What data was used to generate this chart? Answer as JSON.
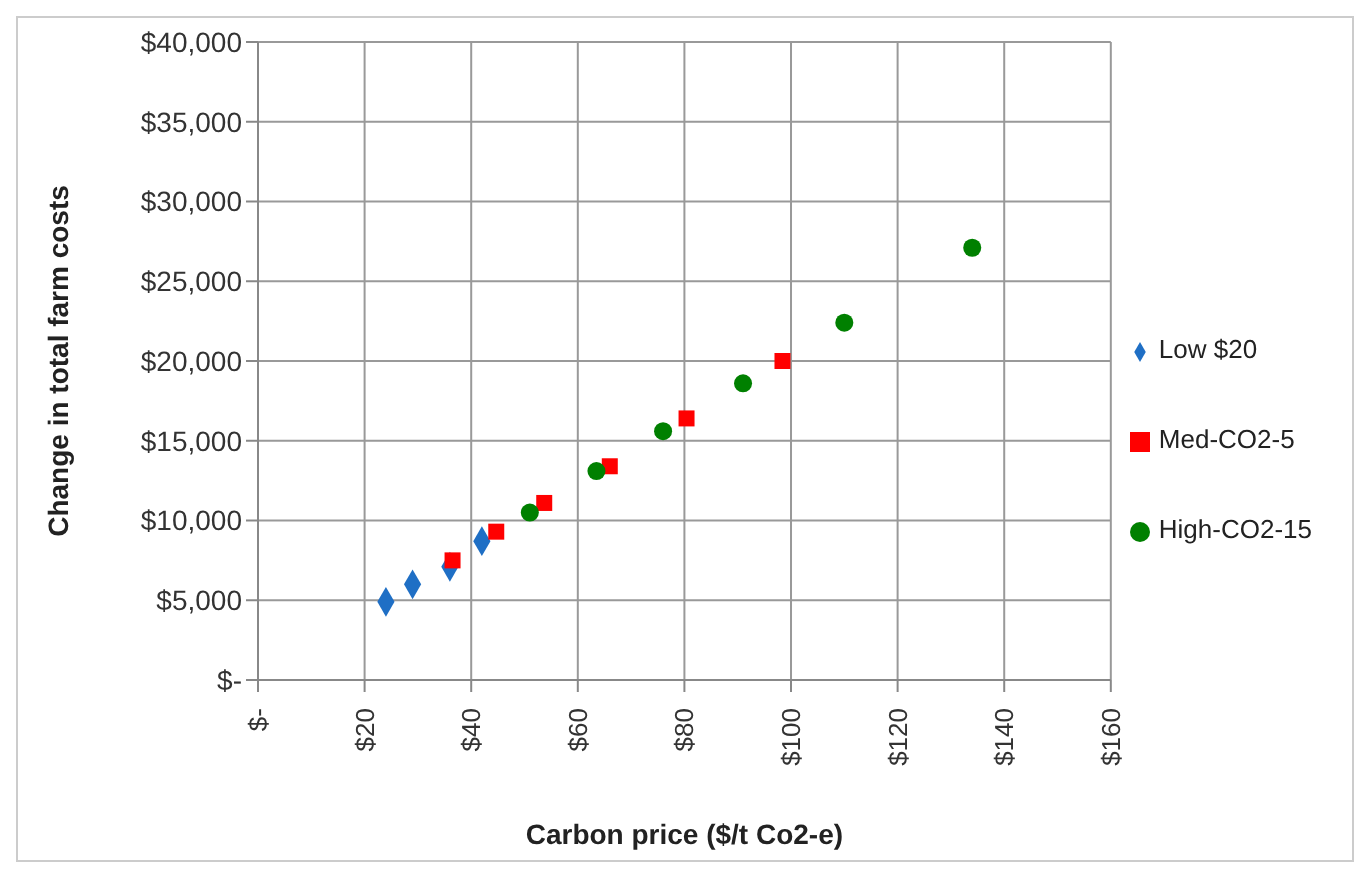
{
  "chart_data": {
    "type": "scatter",
    "xlabel": "Carbon price ($/t Co2-e)",
    "ylabel": "Change in total farm costs",
    "xlim": [
      0,
      160
    ],
    "xticks": [
      {
        "value": 0,
        "label": "$-"
      },
      {
        "value": 20,
        "label": "$20"
      },
      {
        "value": 40,
        "label": "$40"
      },
      {
        "value": 60,
        "label": "$60"
      },
      {
        "value": 80,
        "label": "$80"
      },
      {
        "value": 100,
        "label": "$100"
      },
      {
        "value": 120,
        "label": "$120"
      },
      {
        "value": 140,
        "label": "$140"
      },
      {
        "value": 160,
        "label": "$160"
      }
    ],
    "ylim": [
      0,
      40000
    ],
    "yticks": [
      {
        "value": 0,
        "label": "$-"
      },
      {
        "value": 5000,
        "label": "$5,000"
      },
      {
        "value": 10000,
        "label": "$10,000"
      },
      {
        "value": 15000,
        "label": "$15,000"
      },
      {
        "value": 20000,
        "label": "$20,000"
      },
      {
        "value": 25000,
        "label": "$25,000"
      },
      {
        "value": 30000,
        "label": "$30,000"
      },
      {
        "value": 35000,
        "label": "$35,000"
      },
      {
        "value": 40000,
        "label": "$40,000"
      }
    ],
    "grid": true,
    "legend": "right",
    "series": [
      {
        "name": "Low $20",
        "color": "#1f6fc5",
        "marker": "diamond",
        "x": [
          24,
          29,
          36,
          42
        ],
        "values": [
          4900,
          6000,
          7100,
          8700
        ]
      },
      {
        "name": "Med-CO2-5",
        "color": "#ff0000",
        "marker": "square",
        "x": [
          36.5,
          44.7,
          53.7,
          66,
          80.4,
          98.4
        ],
        "values": [
          7500,
          9300,
          11100,
          13400,
          16400,
          20000
        ]
      },
      {
        "name": "High-CO2-15",
        "color": "#008000",
        "marker": "circle",
        "x": [
          51,
          63.5,
          76,
          91,
          110,
          134
        ],
        "values": [
          10500,
          13100,
          15600,
          18600,
          22400,
          27100
        ]
      }
    ]
  }
}
